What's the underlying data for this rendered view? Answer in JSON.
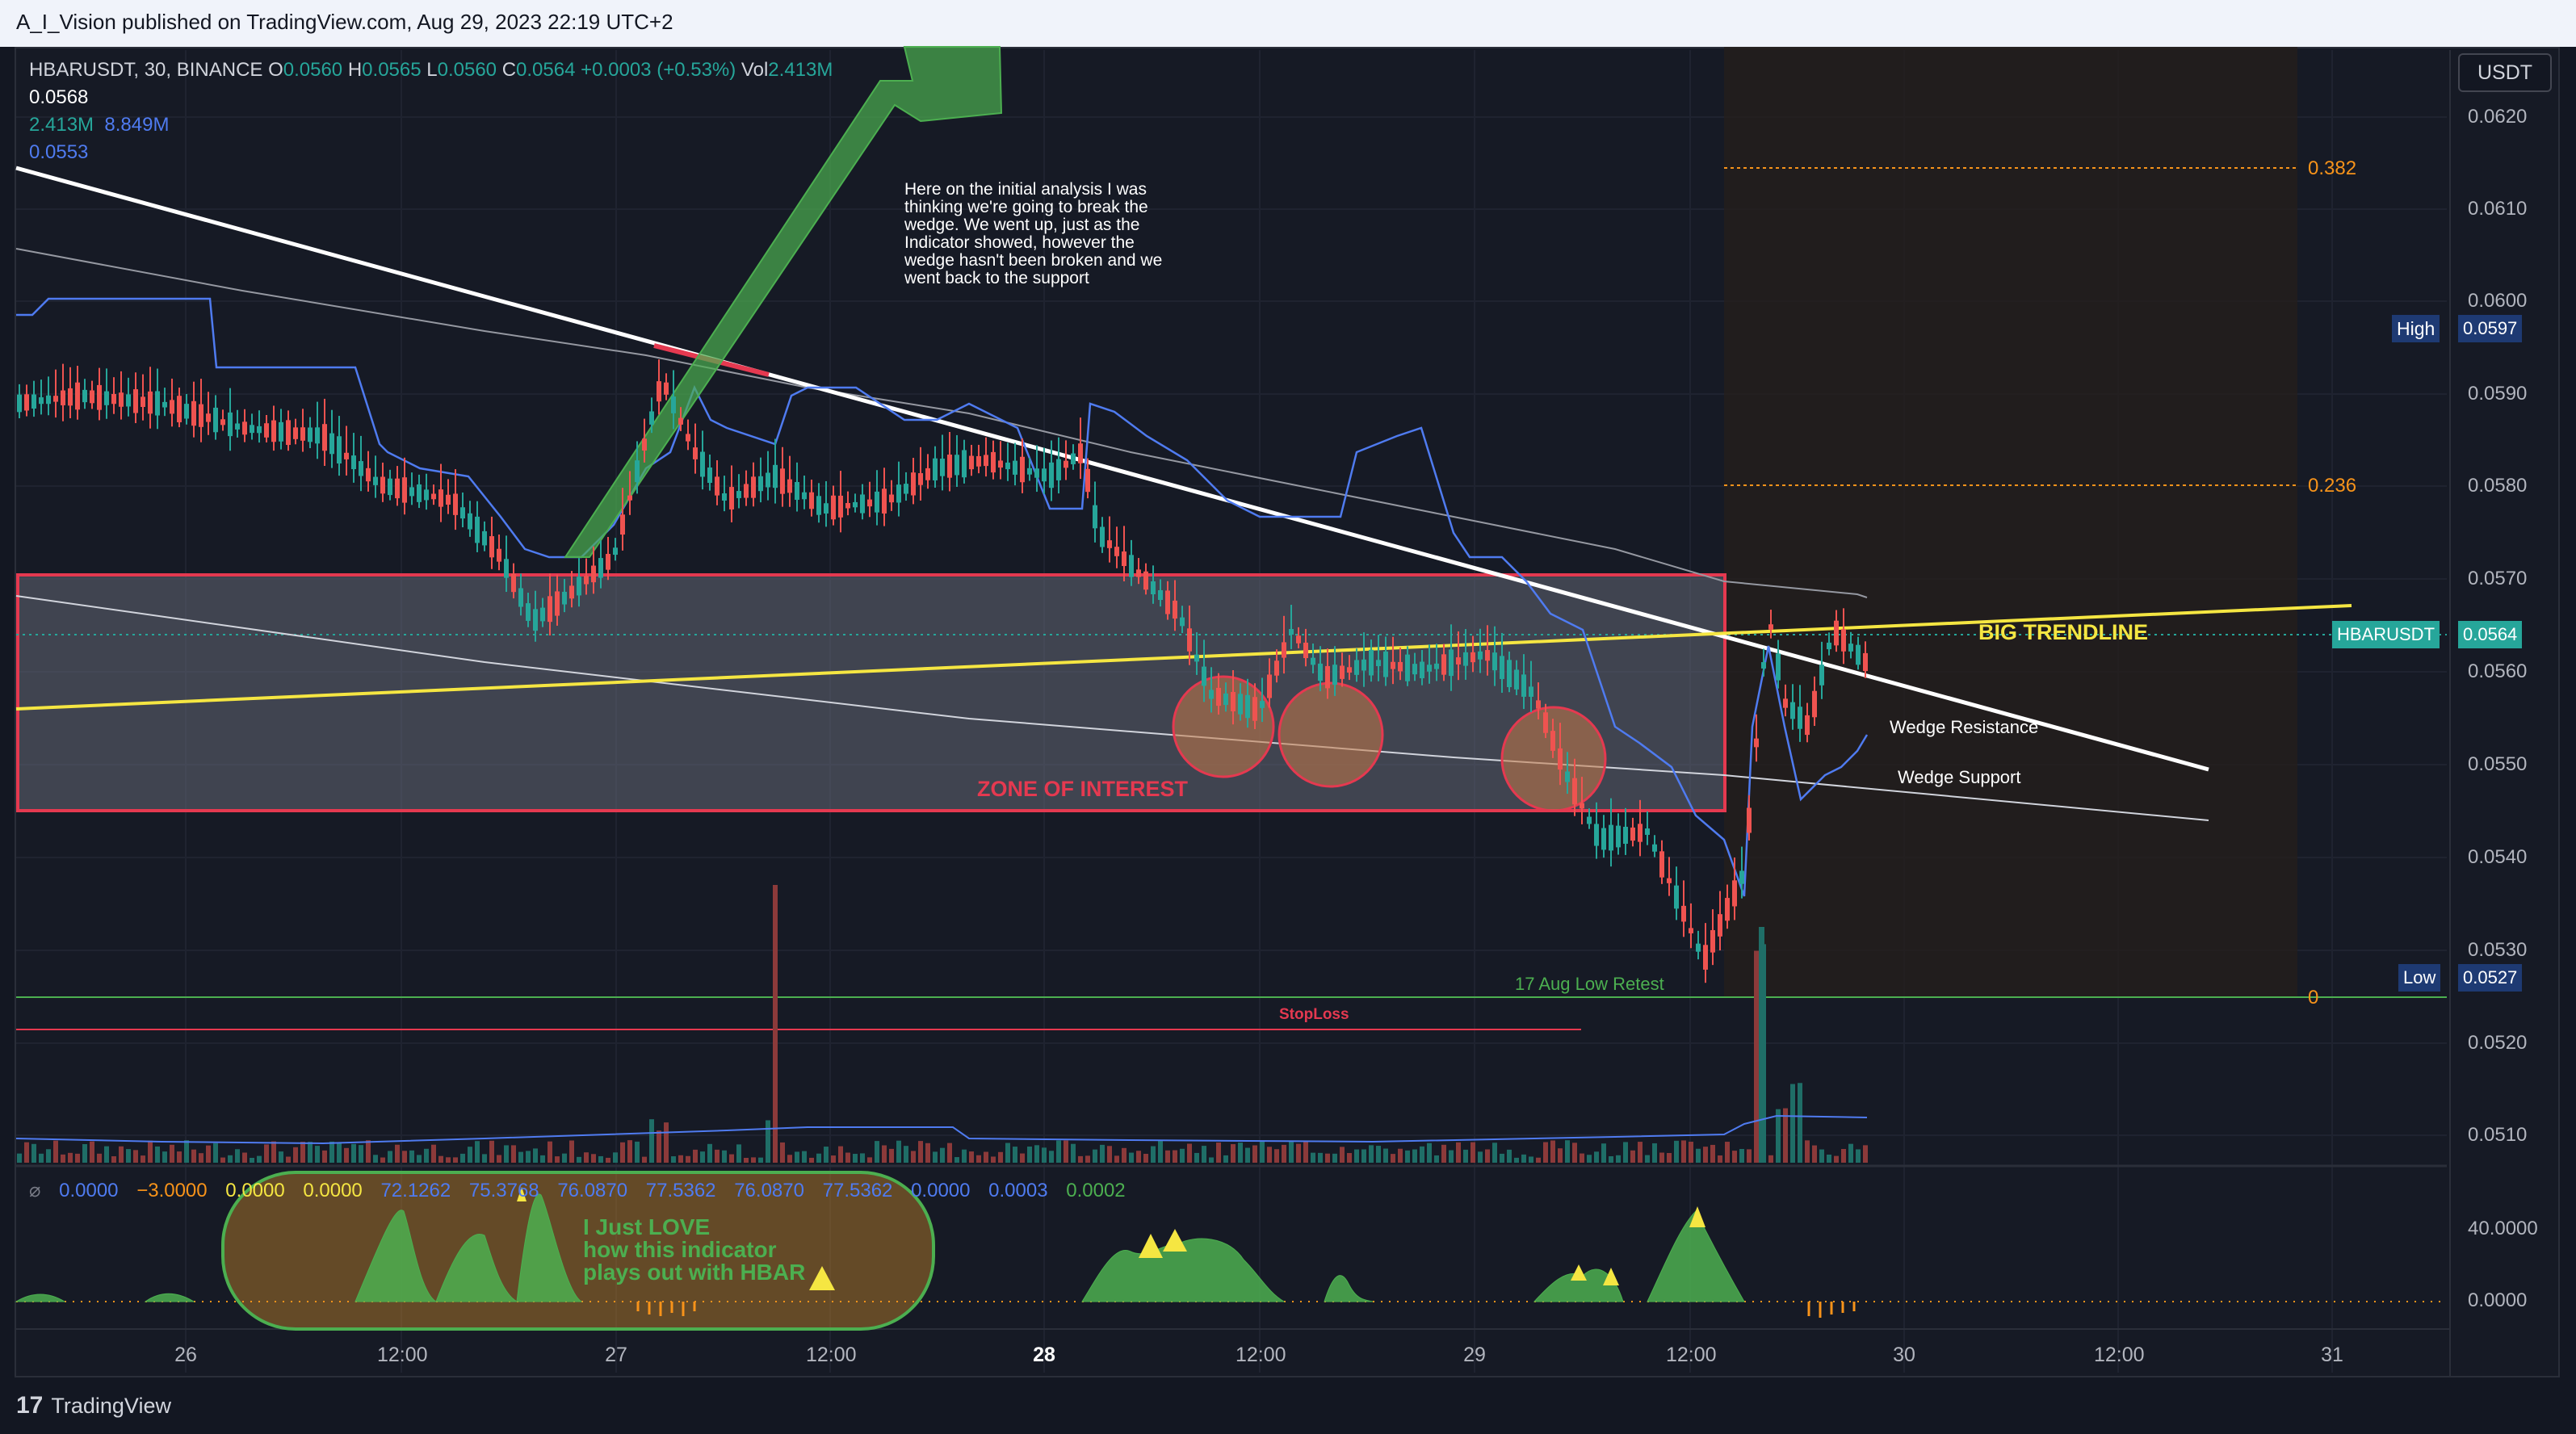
{
  "header": {
    "published": "A_I_Vision published on TradingView.com, Aug 29, 2023 22:19 UTC+2"
  },
  "legend": {
    "symbol": "HBARUSDT, 30, BINANCE",
    "o_label": "O",
    "o_val": "0.0560",
    "h_label": "H",
    "h_val": "0.0565",
    "l_label": "L",
    "l_val": "0.0560",
    "c_label": "C",
    "c_val": "0.0564",
    "change": "+0.0003 (+0.53%)",
    "vol_label": "Vol",
    "vol_val": "2.413M",
    "line2": "0.0568",
    "line3a": "2.413M",
    "line3b": "8.849M",
    "line4": "0.0553"
  },
  "currency_button": "USDT",
  "price_axis": [
    "0.0620",
    "0.0610",
    "0.0600",
    "0.0590",
    "0.0580",
    "0.0570",
    "0.0560",
    "0.0550",
    "0.0540",
    "0.0530",
    "0.0520",
    "0.0510"
  ],
  "price_tags": {
    "high_label": "High",
    "high_val": "0.0597",
    "symbol_label": "HBARUSDT",
    "symbol_val": "0.0564",
    "low_label": "Low",
    "low_val": "0.0527"
  },
  "fib_levels": [
    "0.382",
    "0.236",
    "0"
  ],
  "annotations": {
    "note": "Here on the initial analysis I was thinking we're going to break the wedge. We went up, just as the Indicator showed, however the wedge hasn't been broken and we went back to the support",
    "zone": "ZONE OF INTEREST",
    "big_trendline": "BIG TRENDLINE",
    "wedge_resistance": "Wedge Resistance",
    "wedge_support": "Wedge Support",
    "low_retest": "17 Aug Low Retest",
    "stoploss": "StopLoss",
    "love_1": "I Just LOVE",
    "love_2": "how this indicator",
    "love_3": "plays out with HBAR"
  },
  "indicator_legend": [
    "0.0000",
    "−3.0000",
    "0.0000",
    "0.0000",
    "72.1262",
    "75.3768",
    "76.0870",
    "77.5362",
    "76.0870",
    "77.5362",
    "0.0000",
    "0.0003",
    "0.0002"
  ],
  "indicator_axis": [
    "40.0000",
    "0.0000"
  ],
  "time_axis": [
    "26",
    "12:00",
    "27",
    "12:00",
    "28",
    "12:00",
    "29",
    "12:00",
    "30",
    "12:00",
    "31"
  ],
  "footer": {
    "brand": "TradingView"
  },
  "colors": {
    "bull": "#26a69a",
    "bear": "#ef5350",
    "zone": "#e53950",
    "trend": "#f5e642",
    "ma_blue": "#4f7bf0",
    "fib": "#f7931a"
  }
}
